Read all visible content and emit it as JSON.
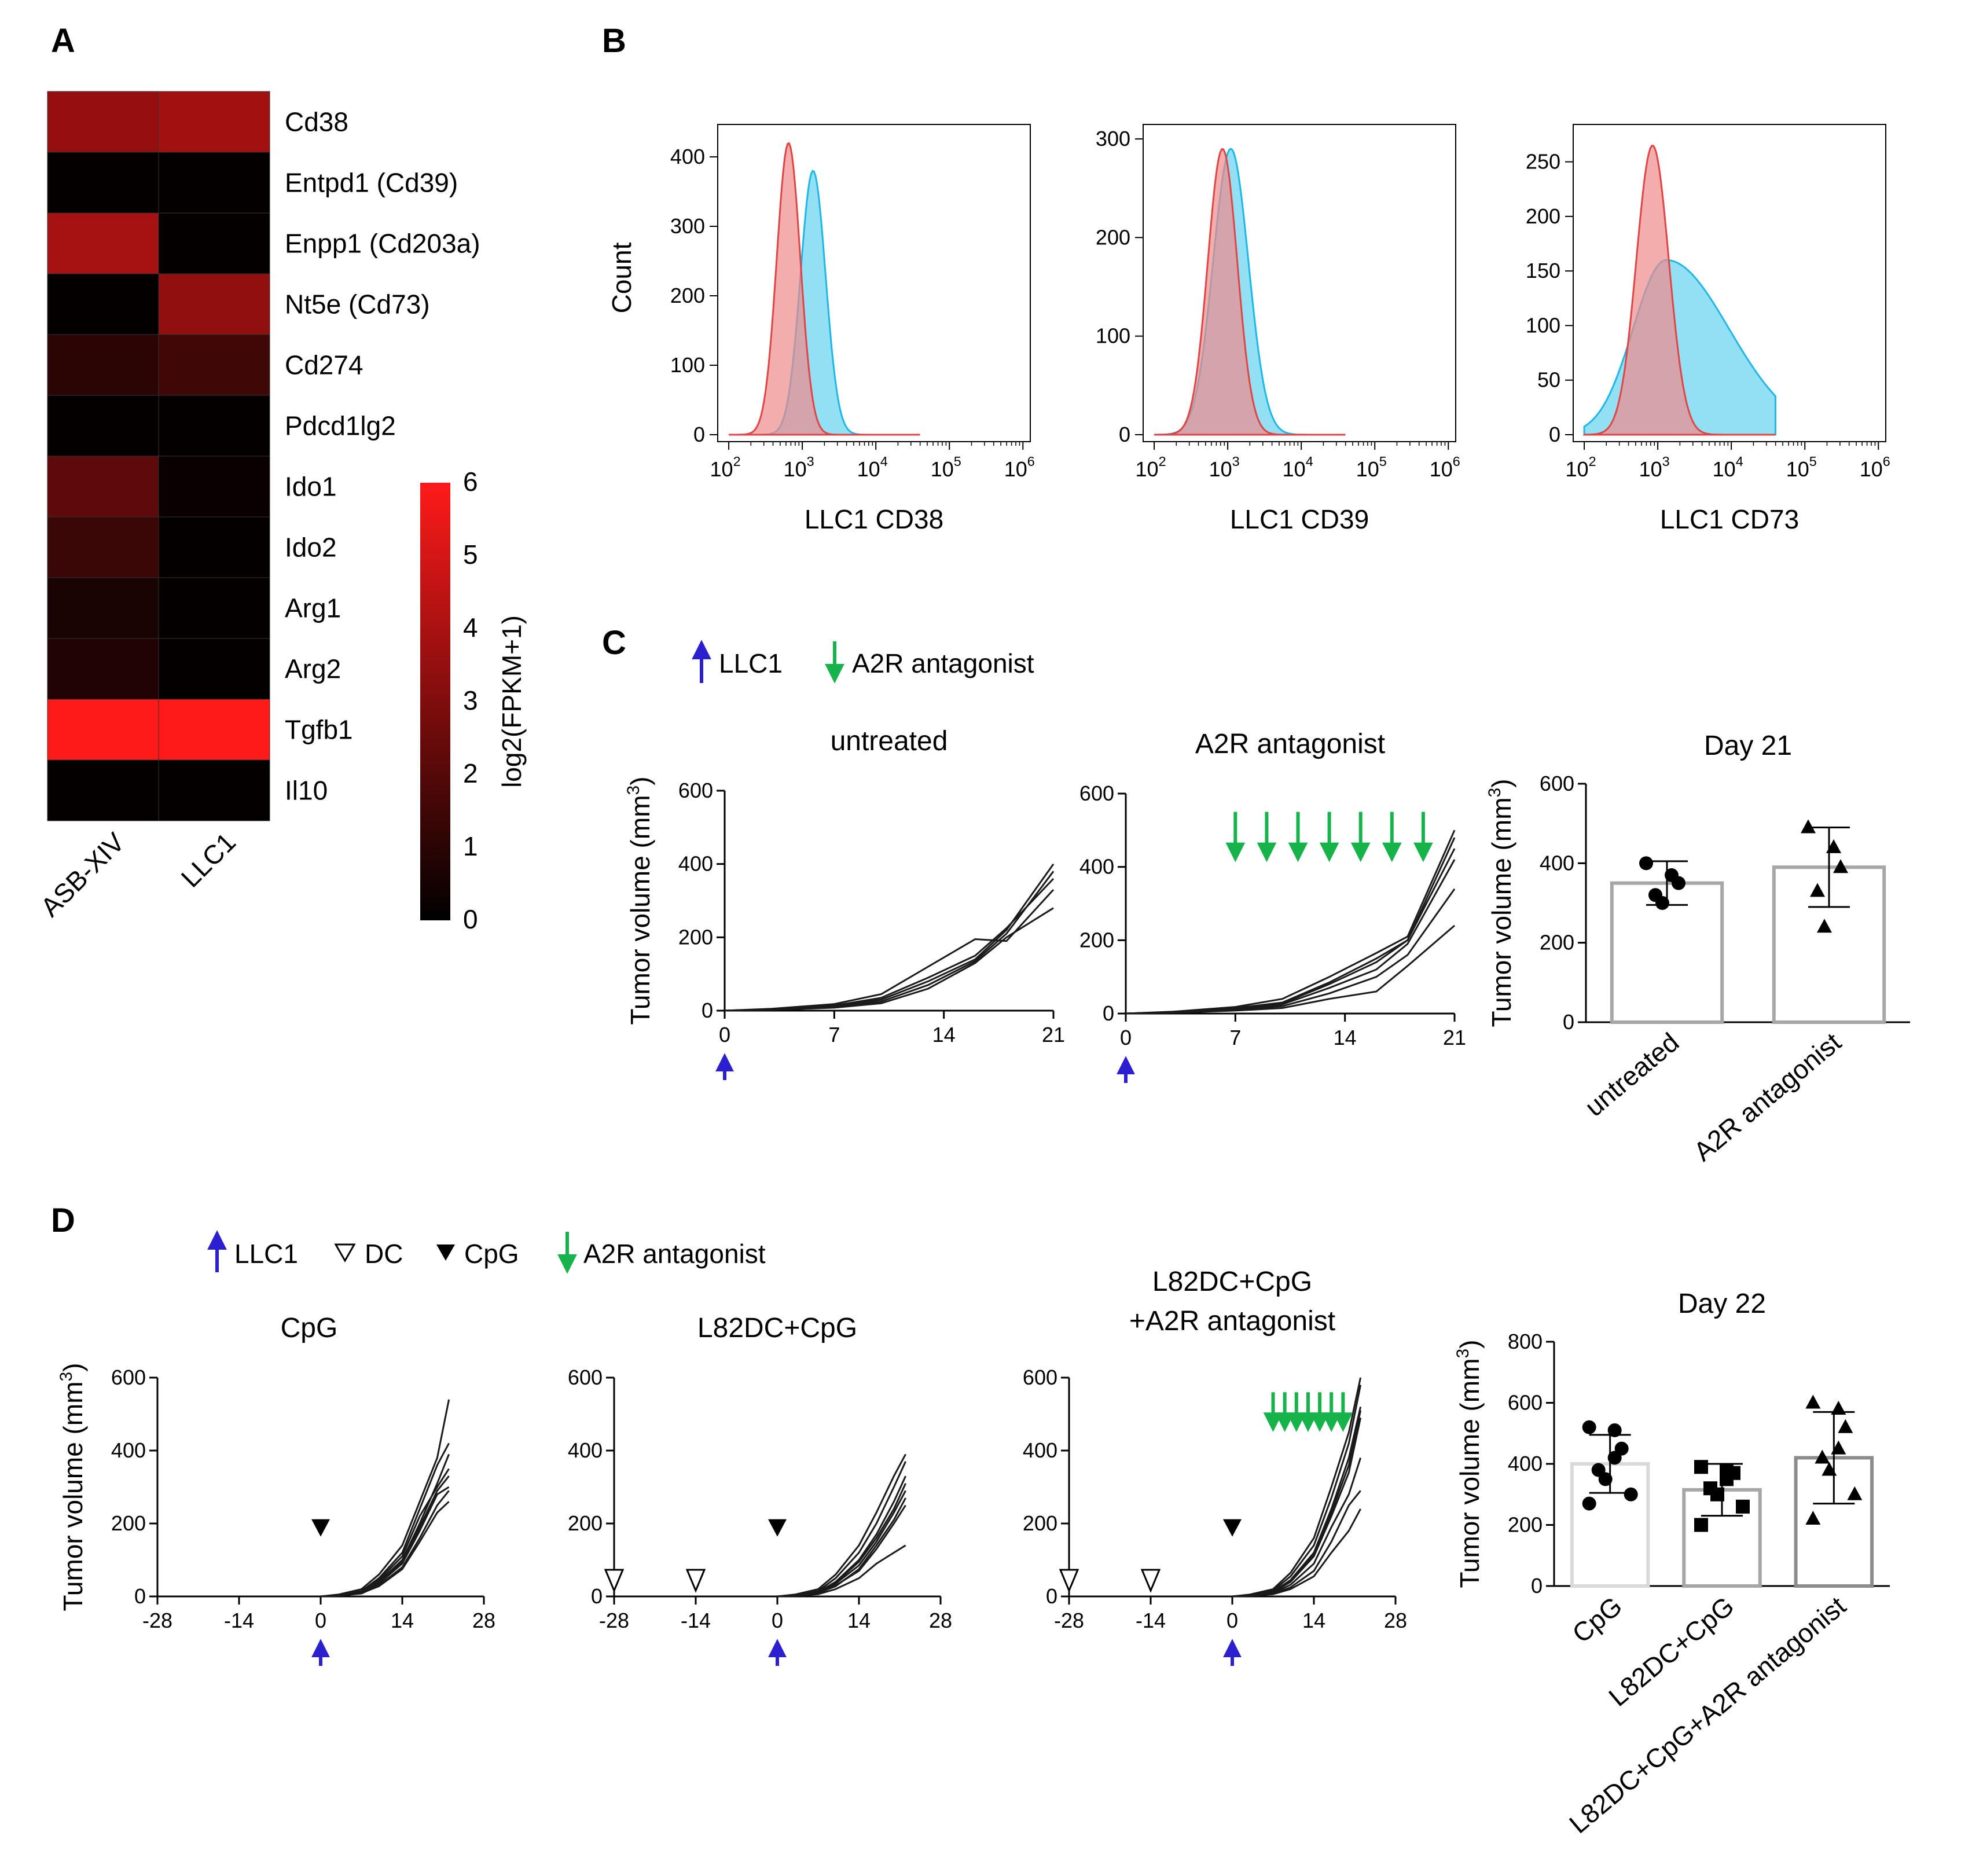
{
  "panel_labels": [
    "A",
    "B",
    "C",
    "D"
  ],
  "colors": {
    "heat_low": "#000000",
    "heat_high": "#ff1a1a",
    "hist_red": "#f08a8a",
    "hist_blue": "#6fd6f2",
    "llc1_arrow": "#2b1fd0",
    "a2r_arrow": "#15b34a"
  },
  "legend_c": {
    "llc1": "LLC1",
    "a2r": "A2R antagonist"
  },
  "legend_d": {
    "llc1": "LLC1",
    "dc": "DC",
    "cpg": "CpG",
    "a2r": "A2R antagonist"
  },
  "chart_data": [
    {
      "id": "A",
      "type": "heatmap",
      "columns": [
        "ASB-XIV",
        "LLC1"
      ],
      "rows": [
        "Cd38",
        "Entpd1 (Cd39)",
        "Enpp1 (Cd203a)",
        "Nt5e (Cd73)",
        "Cd274",
        "Pdcd1lg2",
        "Ido1",
        "Ido2",
        "Arg1",
        "Arg2",
        "Tgfb1",
        "Il10"
      ],
      "values": [
        [
          3.5,
          3.8
        ],
        [
          0.1,
          0.1
        ],
        [
          3.9,
          0.1
        ],
        [
          0.1,
          3.4
        ],
        [
          1.0,
          1.5
        ],
        [
          0.1,
          0.1
        ],
        [
          2.2,
          0.2
        ],
        [
          1.4,
          0.1
        ],
        [
          0.6,
          0.1
        ],
        [
          0.8,
          0.1
        ],
        [
          6.0,
          6.0
        ],
        [
          0.1,
          0.1
        ]
      ],
      "colorbar": {
        "label": "log2(FPKM+1)",
        "min": 0,
        "max": 6,
        "ticks": [
          "0",
          "1",
          "2",
          "3",
          "4",
          "5",
          "6"
        ]
      }
    },
    {
      "id": "B",
      "type": "area",
      "ylabel": "Count",
      "panels": [
        {
          "xlabel": "LLC1 CD38",
          "ymax": 440,
          "yticks": [
            "0",
            "100",
            "200",
            "300",
            "400"
          ],
          "red_peak": [
            650,
            420,
            0.16
          ],
          "blue_peak": [
            1400,
            380,
            0.17
          ]
        },
        {
          "xlabel": "LLC1 CD39",
          "ymax": 310,
          "yticks": [
            "0",
            "100",
            "200",
            "300"
          ],
          "red_peak": [
            850,
            290,
            0.2
          ],
          "blue_peak": [
            1100,
            290,
            0.24
          ]
        },
        {
          "xlabel": "LLC1 CD73",
          "ymax": 280,
          "yticks": [
            "0",
            "50",
            "100",
            "150",
            "200",
            "250"
          ],
          "red_peak": [
            850,
            265,
            0.22
          ],
          "blue_peak": [
            1300,
            160,
            0.45
          ]
        }
      ],
      "xticks": [
        "10^2",
        "10^3",
        "10^4",
        "10^5",
        "10^6"
      ]
    },
    {
      "id": "C-untreated",
      "type": "line",
      "title": "untreated",
      "ylabel": "Tumor volume (mm^3)",
      "ylim": [
        0,
        600
      ],
      "xlim": [
        0,
        21
      ],
      "xticks": [
        "0",
        "7",
        "14",
        "21"
      ],
      "yticks": [
        "0",
        "200",
        "400",
        "600"
      ],
      "x": [
        0,
        3,
        7,
        10,
        13,
        16,
        18,
        21
      ],
      "series": [
        {
          "values": [
            0,
            4,
            12,
            30,
            80,
            140,
            220,
            400
          ]
        },
        {
          "values": [
            0,
            5,
            18,
            45,
            120,
            195,
            190,
            330
          ]
        },
        {
          "values": [
            0,
            3,
            10,
            25,
            70,
            135,
            210,
            380
          ]
        },
        {
          "values": [
            0,
            4,
            14,
            35,
            90,
            150,
            225,
            360
          ]
        },
        {
          "values": [
            0,
            2,
            8,
            20,
            60,
            130,
            200,
            280
          ]
        }
      ],
      "a2r_days": []
    },
    {
      "id": "C-a2r",
      "type": "line",
      "title": "A2R antagonist",
      "ylim": [
        0,
        600
      ],
      "xlim": [
        0,
        21
      ],
      "xticks": [
        "0",
        "7",
        "14",
        "21"
      ],
      "yticks": [
        "0",
        "200",
        "400",
        "600"
      ],
      "x": [
        0,
        3,
        7,
        10,
        13,
        16,
        18,
        21
      ],
      "series": [
        {
          "values": [
            0,
            5,
            18,
            40,
            100,
            165,
            210,
            500
          ]
        },
        {
          "values": [
            0,
            4,
            15,
            30,
            85,
            150,
            200,
            450
          ]
        },
        {
          "values": [
            0,
            3,
            12,
            25,
            70,
            120,
            190,
            420
          ]
        },
        {
          "values": [
            0,
            3,
            10,
            20,
            55,
            100,
            160,
            340
          ]
        },
        {
          "values": [
            0,
            2,
            8,
            15,
            40,
            60,
            130,
            240
          ]
        },
        {
          "values": [
            0,
            4,
            13,
            28,
            80,
            140,
            200,
            480
          ]
        }
      ],
      "a2r_days": [
        7,
        9,
        11,
        13,
        15,
        17,
        19
      ]
    },
    {
      "id": "C-bar",
      "type": "bar",
      "title": "Day 21",
      "ylabel": "Tumor volume (mm^3)",
      "ylim": [
        0,
        600
      ],
      "yticks": [
        "0",
        "200",
        "400",
        "600"
      ],
      "categories": [
        "untreated",
        "A2R antagonist"
      ],
      "values": [
        350,
        390
      ],
      "errors": [
        55,
        100
      ],
      "points": [
        [
          400,
          370,
          350,
          320,
          300
        ],
        [
          490,
          440,
          390,
          330,
          240
        ]
      ],
      "markers": [
        "circle",
        "triangle"
      ],
      "bar_colors": [
        "#a6a6a6",
        "#a6a6a6"
      ]
    },
    {
      "id": "D-cpg",
      "type": "line",
      "title": "CpG",
      "ylabel": "Tumor volume (mm^3)",
      "ylim": [
        0,
        600
      ],
      "xlim": [
        -28,
        28
      ],
      "xticks": [
        "-28",
        "-14",
        "0",
        "14",
        "28"
      ],
      "yticks": [
        "0",
        "200",
        "400",
        "600"
      ],
      "x": [
        0,
        3,
        7,
        10,
        14,
        17,
        20,
        22
      ],
      "series": [
        {
          "values": [
            0,
            5,
            20,
            60,
            140,
            260,
            380,
            540
          ]
        },
        {
          "values": [
            0,
            4,
            15,
            50,
            120,
            240,
            360,
            420
          ]
        },
        {
          "values": [
            0,
            3,
            12,
            40,
            100,
            200,
            310,
            390
          ]
        },
        {
          "values": [
            0,
            4,
            14,
            45,
            110,
            220,
            300,
            350
          ]
        },
        {
          "values": [
            0,
            3,
            10,
            35,
            90,
            180,
            280,
            300
          ]
        },
        {
          "values": [
            0,
            2,
            8,
            30,
            80,
            160,
            250,
            290
          ]
        },
        {
          "values": [
            0,
            3,
            11,
            38,
            95,
            190,
            290,
            330
          ]
        },
        {
          "values": [
            0,
            2,
            9,
            28,
            75,
            150,
            230,
            260
          ]
        }
      ],
      "dc_days": [],
      "cpg_days": [
        0
      ],
      "a2r_days": []
    },
    {
      "id": "D-dc",
      "type": "line",
      "title": "L82DC+CpG",
      "ylim": [
        0,
        600
      ],
      "xlim": [
        -28,
        28
      ],
      "xticks": [
        "-28",
        "-14",
        "0",
        "14",
        "28"
      ],
      "yticks": [
        "0",
        "200",
        "400",
        "600"
      ],
      "x": [
        0,
        3,
        7,
        10,
        14,
        17,
        20,
        22
      ],
      "series": [
        {
          "values": [
            0,
            5,
            20,
            60,
            140,
            230,
            330,
            390
          ]
        },
        {
          "values": [
            0,
            4,
            15,
            50,
            120,
            200,
            300,
            370
          ]
        },
        {
          "values": [
            0,
            3,
            12,
            40,
            100,
            170,
            260,
            330
          ]
        },
        {
          "values": [
            0,
            3,
            10,
            35,
            85,
            150,
            230,
            290
          ]
        },
        {
          "values": [
            0,
            2,
            8,
            30,
            70,
            130,
            200,
            250
          ]
        },
        {
          "values": [
            0,
            2,
            6,
            20,
            50,
            90,
            120,
            140
          ]
        },
        {
          "values": [
            0,
            3,
            11,
            38,
            95,
            160,
            240,
            310
          ]
        },
        {
          "values": [
            0,
            2,
            9,
            28,
            75,
            140,
            210,
            270
          ]
        }
      ],
      "dc_days": [
        -28,
        -14
      ],
      "cpg_days": [
        0
      ],
      "a2r_days": []
    },
    {
      "id": "D-dc-a2r",
      "type": "line",
      "title": "L82DC+CpG",
      "title2": "+A2R antagonist",
      "ylim": [
        0,
        600
      ],
      "xlim": [
        -28,
        28
      ],
      "xticks": [
        "-28",
        "-14",
        "0",
        "14",
        "28"
      ],
      "yticks": [
        "0",
        "200",
        "400",
        "600"
      ],
      "x": [
        0,
        3,
        7,
        10,
        14,
        17,
        20,
        22
      ],
      "series": [
        {
          "values": [
            0,
            5,
            20,
            65,
            160,
            300,
            450,
            600
          ]
        },
        {
          "values": [
            0,
            4,
            16,
            55,
            140,
            270,
            420,
            580
          ]
        },
        {
          "values": [
            0,
            3,
            13,
            45,
            120,
            240,
            380,
            520
          ]
        },
        {
          "values": [
            0,
            3,
            11,
            40,
            110,
            220,
            340,
            490
          ]
        },
        {
          "values": [
            0,
            2,
            9,
            32,
            90,
            190,
            280,
            380
          ]
        },
        {
          "values": [
            0,
            2,
            7,
            25,
            70,
            150,
            250,
            290
          ]
        },
        {
          "values": [
            0,
            2,
            6,
            20,
            55,
            120,
            180,
            240
          ]
        },
        {
          "values": [
            0,
            3,
            12,
            42,
            115,
            230,
            360,
            510
          ]
        }
      ],
      "dc_days": [
        -28,
        -14
      ],
      "cpg_days": [
        0
      ],
      "a2r_days": [
        7,
        9,
        11,
        13,
        15,
        17,
        19
      ]
    },
    {
      "id": "D-bar",
      "type": "bar",
      "title": "Day 22",
      "ylabel": "Tumor volume (mm^3)",
      "ylim": [
        0,
        800
      ],
      "yticks": [
        "0",
        "200",
        "400",
        "600",
        "800"
      ],
      "categories": [
        "CpG",
        "L82DC+CpG",
        "L82DC+CpG+A2R antagonist"
      ],
      "values": [
        400,
        315,
        420
      ],
      "errors": [
        95,
        85,
        150
      ],
      "points": [
        [
          520,
          510,
          450,
          380,
          350,
          300,
          270,
          420
        ],
        [
          390,
          380,
          370,
          320,
          300,
          260,
          200,
          350
        ],
        [
          600,
          580,
          520,
          420,
          380,
          300,
          220,
          450
        ]
      ],
      "markers": [
        "circle",
        "square",
        "triangle"
      ],
      "bar_colors": [
        "#d9d9d9",
        "#a6a6a6",
        "#8c8c8c"
      ]
    }
  ]
}
